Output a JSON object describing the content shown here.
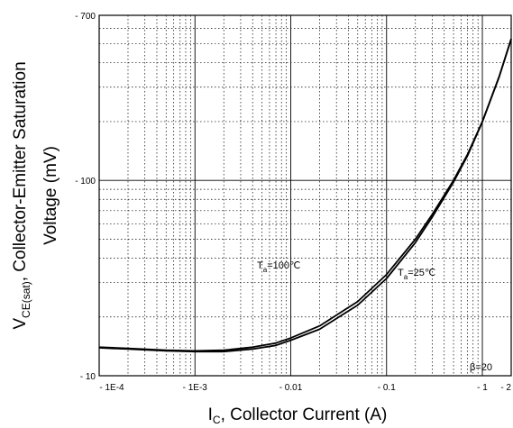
{
  "chart_data": {
    "type": "line",
    "xscale": "log",
    "yscale": "log",
    "xlim": [
      0.0001,
      2
    ],
    "ylim": [
      10,
      700
    ],
    "grid": true,
    "x_tick_labels": [
      "1E-4",
      "1E-3",
      "0.01",
      "0.1",
      "1",
      "2"
    ],
    "y_tick_labels": [
      "10",
      "100",
      "700"
    ],
    "xlabel": {
      "main": "I",
      "sub": "C",
      "rest": ", Collector Current (A)"
    },
    "ylabel": {
      "line1_main": "V",
      "line1_sub": "CE(sat)",
      "line1_rest": ",  Collector-Emitter Saturation",
      "line2": "Voltage (mV)"
    },
    "annotations": [
      {
        "main": "T",
        "sub": "a",
        "rest": "=100℃"
      },
      {
        "main": "T",
        "sub": "a",
        "rest": "=25℃"
      },
      {
        "text": "β=20"
      }
    ],
    "series": [
      {
        "x": [
          0.0001,
          0.0002,
          0.0005,
          0.001,
          0.002,
          0.004,
          0.007,
          0.01,
          0.02,
          0.05,
          0.1,
          0.2,
          0.3,
          0.5,
          0.7,
          1,
          1.5,
          2
        ],
        "y": [
          14.0,
          13.8,
          13.5,
          13.4,
          13.5,
          14.0,
          14.7,
          15.6,
          18.0,
          24.0,
          33.0,
          50.0,
          67.0,
          100.0,
          136.0,
          200.0,
          340.0,
          530.0
        ]
      },
      {
        "x": [
          0.0001,
          0.0002,
          0.0005,
          0.001,
          0.002,
          0.004,
          0.007,
          0.01,
          0.02,
          0.05,
          0.1,
          0.2,
          0.3,
          0.5,
          0.7,
          1,
          1.5,
          2
        ],
        "y": [
          13.9,
          13.7,
          13.4,
          13.3,
          13.3,
          13.7,
          14.3,
          15.2,
          17.3,
          23.0,
          31.5,
          48.0,
          65.0,
          98.0,
          134.0,
          199.0,
          340.0,
          530.0
        ]
      }
    ]
  }
}
